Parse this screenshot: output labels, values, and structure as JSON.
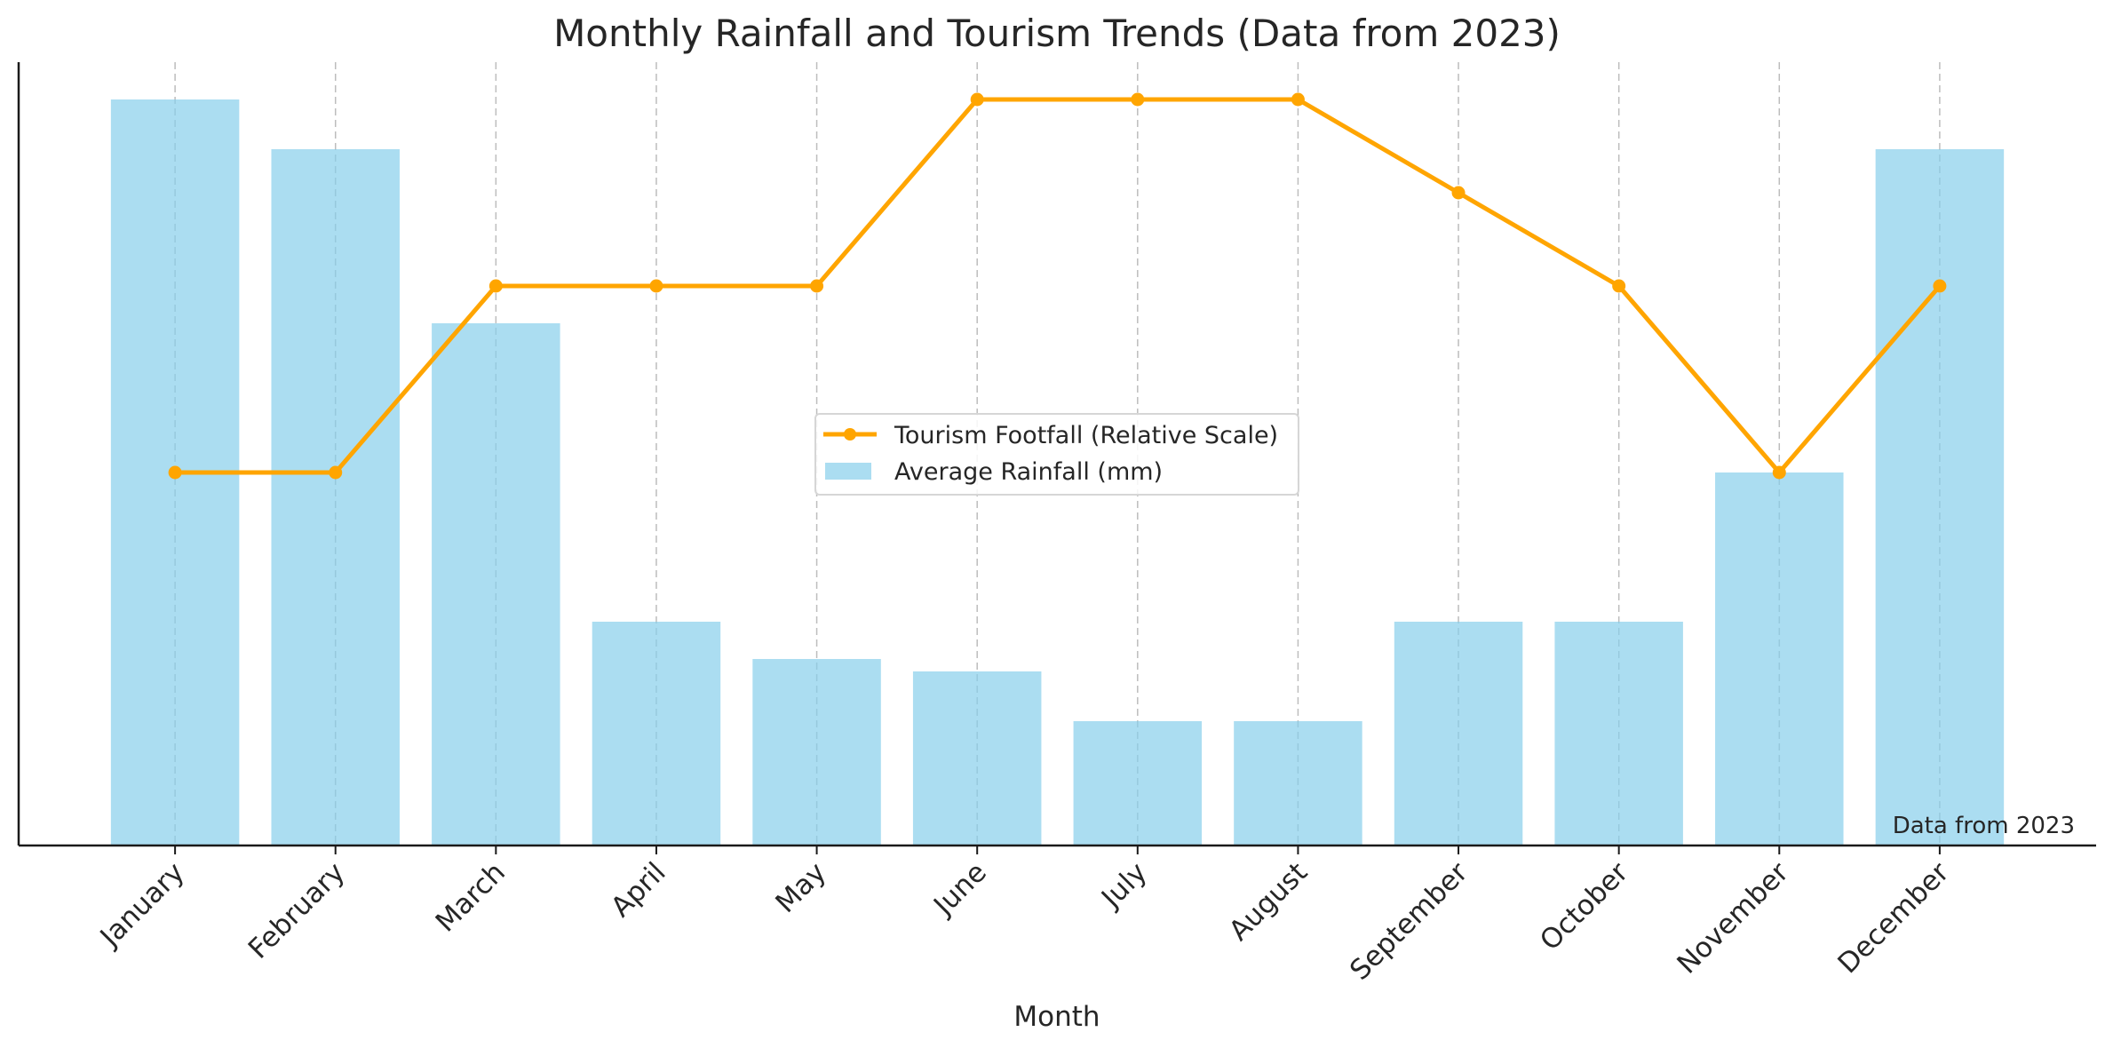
{
  "chart_data": {
    "type": "bar",
    "title": "Monthly Rainfall and Tourism Trends (Data from 2023)",
    "xlabel": "Month",
    "ylabel": "",
    "categories": [
      "January",
      "February",
      "March",
      "April",
      "May",
      "June",
      "July",
      "August",
      "September",
      "October",
      "November",
      "December"
    ],
    "series": [
      {
        "name": "Average Rainfall (mm)",
        "type": "bar",
        "color": "#87CEEB",
        "values": [
          300,
          280,
          210,
          90,
          75,
          70,
          50,
          50,
          90,
          90,
          150,
          280
        ]
      },
      {
        "name": "Tourism Footfall (Relative Scale)",
        "type": "line",
        "color": "#FFA500",
        "marker": "circle",
        "values": [
          150,
          150,
          225,
          225,
          225,
          300,
          300,
          300,
          262.5,
          225,
          150,
          225
        ]
      }
    ],
    "ylim": [
      0,
      315
    ],
    "y_ticks_shown": false,
    "grid": "vertical dashed",
    "legend_placement": "center",
    "annotation": "Data from 2023"
  }
}
